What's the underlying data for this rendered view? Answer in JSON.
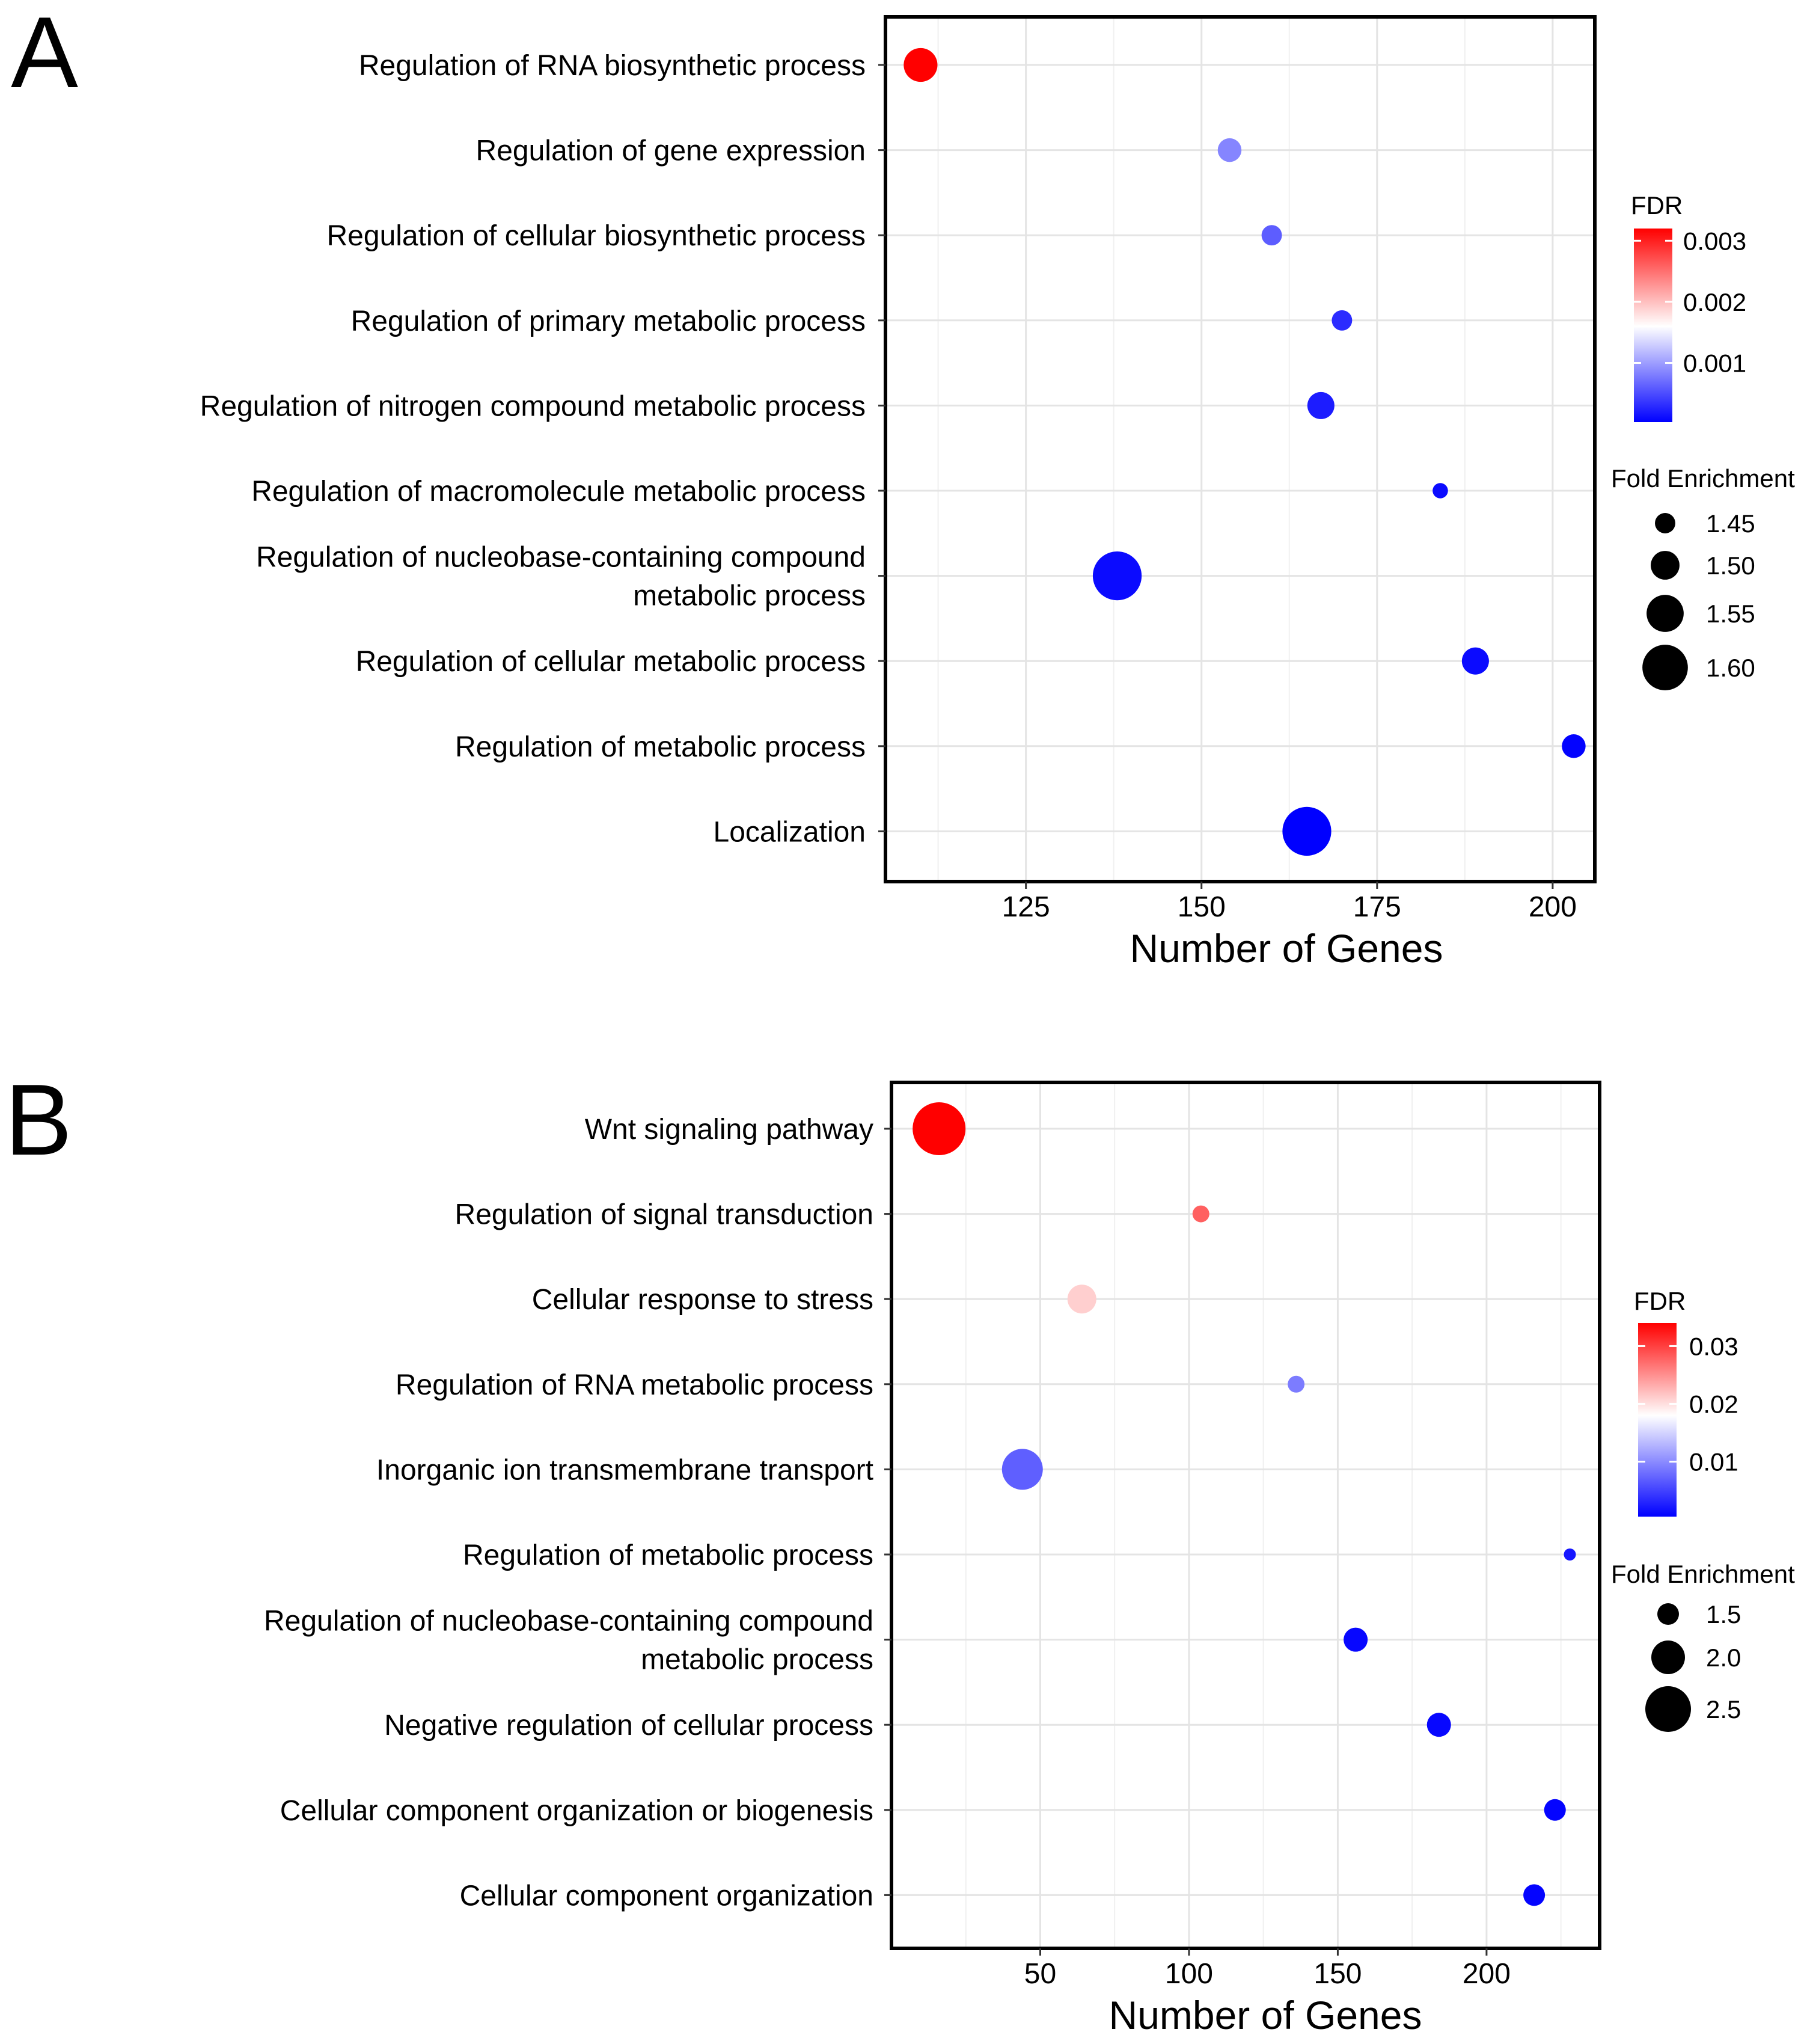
{
  "chart_data": [
    {
      "panel": "A",
      "type": "scatter",
      "xlabel": "Number of Genes",
      "ylabel": "",
      "xlim": [
        105,
        206
      ],
      "xticks": [
        125,
        150,
        175,
        200
      ],
      "xtick_labels": [
        "125",
        "150",
        "175",
        "200"
      ],
      "grid": true,
      "categories": [
        {
          "label": "Regulation of RNA biosynthetic process",
          "lines": [
            "Regulation of RNA biosynthetic process"
          ],
          "x": 110,
          "fdr": 0.0032,
          "fold_enrichment": 1.53
        },
        {
          "label": "Regulation of gene expression",
          "lines": [
            "Regulation of gene expression"
          ],
          "x": 154,
          "fdr": 0.00085,
          "fold_enrichment": 1.47
        },
        {
          "label": "Regulation of cellular biosynthetic process",
          "lines": [
            "Regulation of cellular biosynthetic process"
          ],
          "x": 160,
          "fdr": 0.0006,
          "fold_enrichment": 1.45
        },
        {
          "label": "Regulation of primary metabolic process",
          "lines": [
            "Regulation of primary metabolic process"
          ],
          "x": 170,
          "fdr": 0.0003,
          "fold_enrichment": 1.45
        },
        {
          "label": "Regulation of nitrogen compound metabolic process",
          "lines": [
            "Regulation of nitrogen compound metabolic process"
          ],
          "x": 167,
          "fdr": 0.0002,
          "fold_enrichment": 1.49
        },
        {
          "label": "Regulation of macromolecule metabolic process",
          "lines": [
            "Regulation of macromolecule metabolic process"
          ],
          "x": 184,
          "fdr": 0.0001,
          "fold_enrichment": 1.42
        },
        {
          "label": "Regulation of nucleobase-containing compound metabolic process",
          "lines": [
            "Regulation of nucleobase-containing compound",
            "metabolic process"
          ],
          "x": 138,
          "fdr": 0.0001,
          "fold_enrichment": 1.62
        },
        {
          "label": "Regulation of cellular metabolic process",
          "lines": [
            "Regulation of cellular metabolic process"
          ],
          "x": 189,
          "fdr": 0.0001,
          "fold_enrichment": 1.49
        },
        {
          "label": "Regulation of metabolic process",
          "lines": [
            "Regulation of metabolic process"
          ],
          "x": 203,
          "fdr": 5e-05,
          "fold_enrichment": 1.47
        },
        {
          "label": "Localization",
          "lines": [
            "Localization"
          ],
          "x": 165,
          "fdr": 3e-05,
          "fold_enrichment": 1.62
        }
      ],
      "legend": {
        "color_title": "FDR",
        "color_range": [
          3e-05,
          0.0032
        ],
        "color_ticks": [
          0.003,
          0.002,
          0.001
        ],
        "color_tick_labels": [
          "0.003",
          "0.002",
          "0.001"
        ],
        "colors": {
          "low": "#0000FF",
          "mid": "#FFFFFF",
          "high": "#FF0000"
        },
        "color_mid": 0.0016,
        "size_title": "Fold Enrichment",
        "size_range": [
          1.4,
          1.63
        ],
        "size_values": [
          1.45,
          1.5,
          1.55,
          1.6
        ],
        "size_labels": [
          "1.45",
          "1.50",
          "1.55",
          "1.60"
        ]
      }
    },
    {
      "panel": "B",
      "type": "scatter",
      "xlabel": "Number of Genes",
      "ylabel": "",
      "xlim": [
        0,
        238
      ],
      "xticks": [
        50,
        100,
        150,
        200
      ],
      "xtick_labels": [
        "50",
        "100",
        "150",
        "200"
      ],
      "grid": true,
      "categories": [
        {
          "label": "Wnt signaling pathway",
          "lines": [
            "Wnt signaling pathway"
          ],
          "x": 16,
          "fdr": 0.034,
          "fold_enrichment": 2.8
        },
        {
          "label": "Regulation of signal transduction",
          "lines": [
            "Regulation of signal transduction"
          ],
          "x": 104,
          "fdr": 0.028,
          "fold_enrichment": 1.3
        },
        {
          "label": "Cellular response to stress",
          "lines": [
            "Cellular response to stress"
          ],
          "x": 64,
          "fdr": 0.021,
          "fold_enrichment": 1.8
        },
        {
          "label": "Regulation of RNA metabolic process",
          "lines": [
            "Regulation of RNA metabolic process"
          ],
          "x": 136,
          "fdr": 0.009,
          "fold_enrichment": 1.3
        },
        {
          "label": "Inorganic ion transmembrane transport",
          "lines": [
            "Inorganic ion transmembrane transport"
          ],
          "x": 44,
          "fdr": 0.007,
          "fold_enrichment": 2.3
        },
        {
          "label": "Regulation of metabolic process",
          "lines": [
            "Regulation of metabolic process"
          ],
          "x": 228,
          "fdr": 0.002,
          "fold_enrichment": 1.1
        },
        {
          "label": "Regulation of nucleobase-containing compound metabolic process",
          "lines": [
            "Regulation of nucleobase-containing compound",
            "metabolic process"
          ],
          "x": 156,
          "fdr": 0.001,
          "fold_enrichment": 1.6
        },
        {
          "label": "Negative regulation of cellular process",
          "lines": [
            "Negative regulation of cellular process"
          ],
          "x": 184,
          "fdr": 0.001,
          "fold_enrichment": 1.6
        },
        {
          "label": "Cellular component organization or biogenesis",
          "lines": [
            "Cellular component organization or biogenesis"
          ],
          "x": 223,
          "fdr": 0.0008,
          "fold_enrichment": 1.5
        },
        {
          "label": "Cellular component organization",
          "lines": [
            "Cellular component organization"
          ],
          "x": 216,
          "fdr": 0.0008,
          "fold_enrichment": 1.5
        }
      ],
      "legend": {
        "color_title": "FDR",
        "color_range": [
          0.0005,
          0.034
        ],
        "color_ticks": [
          0.03,
          0.02,
          0.01
        ],
        "color_tick_labels": [
          "0.03",
          "0.02",
          "0.01"
        ],
        "colors": {
          "low": "#0000FF",
          "mid": "#FFFFFF",
          "high": "#FF0000"
        },
        "color_mid": 0.018,
        "size_title": "Fold Enrichment",
        "size_range": [
          1.0,
          2.9
        ],
        "size_values": [
          1.5,
          2.0,
          2.5
        ],
        "size_labels": [
          "1.5",
          "2.0",
          "2.5"
        ]
      }
    }
  ]
}
